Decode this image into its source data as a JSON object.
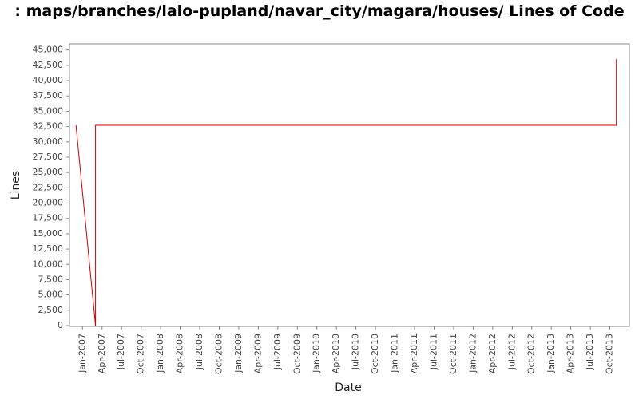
{
  "chart_data": {
    "type": "line",
    "title": ": maps/branches/lalo-pupland/navar_city/magara/houses/ Lines of Code",
    "x_label": "Date",
    "y_label": "Lines",
    "x": [
      "2006-12",
      "2007-03",
      "2007-03",
      "2013-11",
      "2013-11"
    ],
    "values": [
      32700,
      0,
      32700,
      32700,
      43500
    ],
    "color": "#cc0000",
    "xlim": [
      "2006-11",
      "2014-01"
    ],
    "xticks": [
      {
        "value": "2007-01",
        "label": "Jan-2007"
      },
      {
        "value": "2007-04",
        "label": "Apr-2007"
      },
      {
        "value": "2007-07",
        "label": "Jul-2007"
      },
      {
        "value": "2007-10",
        "label": "Oct-2007"
      },
      {
        "value": "2008-01",
        "label": "Jan-2008"
      },
      {
        "value": "2008-04",
        "label": "Apr-2008"
      },
      {
        "value": "2008-07",
        "label": "Jul-2008"
      },
      {
        "value": "2008-10",
        "label": "Oct-2008"
      },
      {
        "value": "2009-01",
        "label": "Jan-2009"
      },
      {
        "value": "2009-04",
        "label": "Apr-2009"
      },
      {
        "value": "2009-07",
        "label": "Jul-2009"
      },
      {
        "value": "2009-10",
        "label": "Oct-2009"
      },
      {
        "value": "2010-01",
        "label": "Jan-2010"
      },
      {
        "value": "2010-04",
        "label": "Apr-2010"
      },
      {
        "value": "2010-07",
        "label": "Jul-2010"
      },
      {
        "value": "2010-10",
        "label": "Oct-2010"
      },
      {
        "value": "2011-01",
        "label": "Jan-2011"
      },
      {
        "value": "2011-04",
        "label": "Apr-2011"
      },
      {
        "value": "2011-07",
        "label": "Jul-2011"
      },
      {
        "value": "2011-10",
        "label": "Oct-2011"
      },
      {
        "value": "2012-01",
        "label": "Jan-2012"
      },
      {
        "value": "2012-04",
        "label": "Apr-2012"
      },
      {
        "value": "2012-07",
        "label": "Jul-2012"
      },
      {
        "value": "2012-10",
        "label": "Oct-2012"
      },
      {
        "value": "2013-01",
        "label": "Jan-2013"
      },
      {
        "value": "2013-04",
        "label": "Apr-2013"
      },
      {
        "value": "2013-07",
        "label": "Jul-2013"
      },
      {
        "value": "2013-10",
        "label": "Oct-2013"
      }
    ],
    "ylim": [
      0,
      46000
    ],
    "yticks": [
      0,
      {
        "value": 2500,
        "label": "2,500"
      },
      {
        "value": 5000,
        "label": "5,000"
      },
      {
        "value": 7500,
        "label": "7,500"
      },
      {
        "value": 10000,
        "label": "10,000"
      },
      {
        "value": 12500,
        "label": "12,500"
      },
      {
        "value": 15000,
        "label": "15,000"
      },
      {
        "value": 17500,
        "label": "17,500"
      },
      {
        "value": 20000,
        "label": "20,000"
      },
      {
        "value": 22500,
        "label": "22,500"
      },
      {
        "value": 25000,
        "label": "25,000"
      },
      {
        "value": 27500,
        "label": "27,500"
      },
      {
        "value": 30000,
        "label": "30,000"
      },
      {
        "value": 32500,
        "label": "32,500"
      },
      {
        "value": 35000,
        "label": "35,000"
      },
      {
        "value": 37500,
        "label": "37,500"
      },
      {
        "value": 40000,
        "label": "40,000"
      },
      {
        "value": 42500,
        "label": "42,500"
      },
      {
        "value": 45000,
        "label": "45,000"
      }
    ],
    "grid": false
  }
}
